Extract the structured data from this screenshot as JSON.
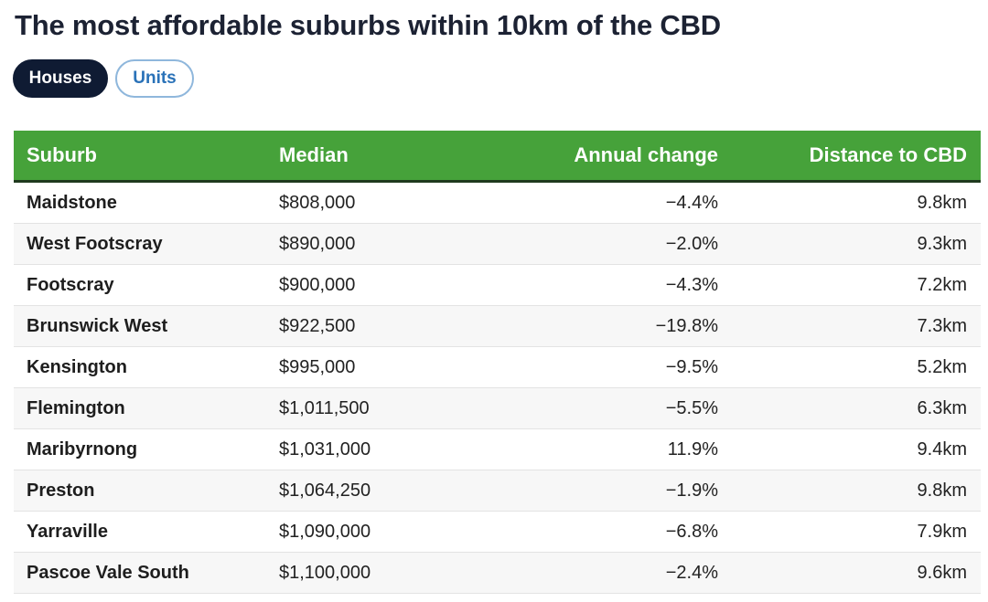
{
  "page": {
    "title": "The most affordable suburbs within 10km of the CBD"
  },
  "toggle": {
    "options": [
      {
        "label": "Houses",
        "active": true
      },
      {
        "label": "Units",
        "active": false
      }
    ]
  },
  "colors": {
    "header_green": "#46a23a",
    "active_pill": "#0f1b33",
    "inactive_pill_text": "#2a72b8"
  },
  "table": {
    "headers": [
      "Suburb",
      "Median",
      "Annual change",
      "Distance to CBD"
    ],
    "rows": [
      [
        "Maidstone",
        "$808,000",
        "−4.4%",
        "9.8km"
      ],
      [
        "West Footscray",
        "$890,000",
        "−2.0%",
        "9.3km"
      ],
      [
        "Footscray",
        "$900,000",
        "−4.3%",
        "7.2km"
      ],
      [
        "Brunswick West",
        "$922,500",
        "−19.8%",
        "7.3km"
      ],
      [
        "Kensington",
        "$995,000",
        "−9.5%",
        "5.2km"
      ],
      [
        "Flemington",
        "$1,011,500",
        "−5.5%",
        "6.3km"
      ],
      [
        "Maribyrnong",
        "$1,031,000",
        "11.9%",
        "9.4km"
      ],
      [
        "Preston",
        "$1,064,250",
        "−1.9%",
        "9.8km"
      ],
      [
        "Yarraville",
        "$1,090,000",
        "−6.8%",
        "7.9km"
      ],
      [
        "Pascoe Vale South",
        "$1,100,000",
        "−2.4%",
        "9.6km"
      ]
    ]
  }
}
